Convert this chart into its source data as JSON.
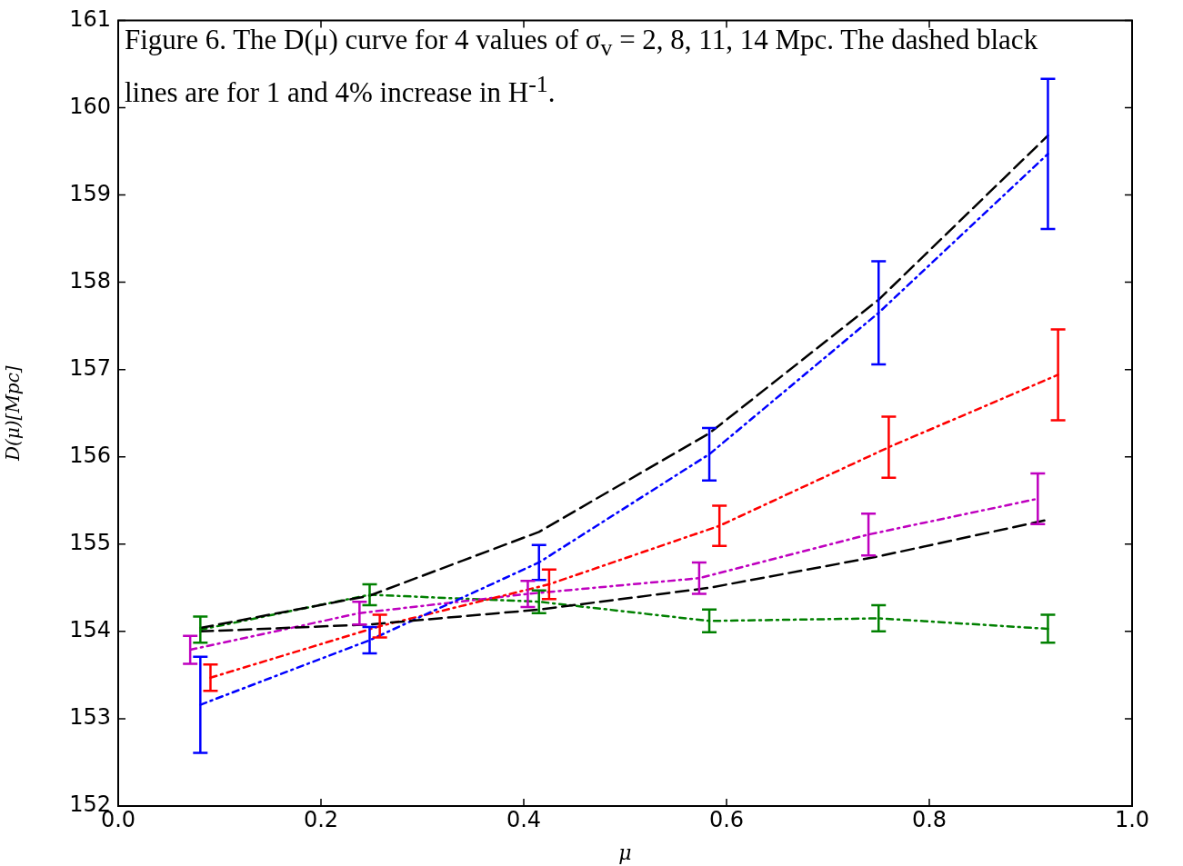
{
  "chart_data": {
    "type": "line",
    "xlabel": "μ",
    "ylabel": "D(μ)[Mpc]",
    "annotations": [
      "Figure 6. The D(μ) curve for 4 values of σ$_{v}$ = 2, 8, 11, 14 Mpc. The dashed black lines are for 1 and 4% increase in H$^{-1}$."
    ],
    "xlim": [
      0,
      1
    ],
    "xticks": [
      {
        "value": 0,
        "label": "0.0"
      },
      {
        "value": 0.2,
        "label": "0.2"
      },
      {
        "value": 0.4,
        "label": "0.4"
      },
      {
        "value": 0.6,
        "label": "0.6"
      },
      {
        "value": 0.8,
        "label": "0.8"
      },
      {
        "value": 1,
        "label": "1.0"
      }
    ],
    "ylim": [
      152,
      161
    ],
    "yticks": [
      152,
      153,
      154,
      155,
      156,
      157,
      158,
      159,
      160,
      161
    ],
    "grid": false,
    "legend": false,
    "marker": "none",
    "series": [
      {
        "color": "#000000",
        "line_style": "dashed",
        "x": [
          0.081,
          0.248,
          0.415,
          0.583,
          0.75,
          0.917
        ],
        "values": [
          154.04,
          154.41,
          155.14,
          156.27,
          157.8,
          159.68
        ]
      },
      {
        "color": "#000000",
        "line_style": "dashed",
        "x": [
          0.081,
          0.248,
          0.415,
          0.583,
          0.75,
          0.917
        ],
        "values": [
          154.0,
          154.08,
          154.25,
          154.5,
          154.86,
          155.28
        ]
      },
      {
        "color": "#0000ff",
        "line_style": "dotted",
        "x": [
          0.081,
          0.248,
          0.415,
          0.583,
          0.75,
          0.917
        ],
        "values": [
          153.16,
          153.9,
          154.79,
          156.03,
          157.65,
          159.47
        ],
        "errors": [
          0.55,
          0.15,
          0.2,
          0.3,
          0.59,
          0.86
        ]
      },
      {
        "color": "#ff0000",
        "line_style": "dotted",
        "x": [
          0.091,
          0.258,
          0.425,
          0.593,
          0.76,
          0.927
        ],
        "values": [
          153.47,
          154.06,
          154.54,
          155.21,
          156.11,
          156.94
        ],
        "errors": [
          0.15,
          0.13,
          0.17,
          0.23,
          0.35,
          0.52
        ]
      },
      {
        "color": "#bf00bf",
        "line_style": "dotted",
        "x": [
          0.071,
          0.238,
          0.404,
          0.573,
          0.74,
          0.907
        ],
        "values": [
          153.79,
          154.21,
          154.43,
          154.61,
          155.11,
          155.52
        ],
        "errors": [
          0.16,
          0.13,
          0.15,
          0.18,
          0.24,
          0.29
        ]
      },
      {
        "color": "#008000",
        "line_style": "dotted",
        "x": [
          0.081,
          0.248,
          0.415,
          0.583,
          0.75,
          0.917
        ],
        "values": [
          154.02,
          154.42,
          154.34,
          154.12,
          154.15,
          154.03
        ],
        "errors": [
          0.15,
          0.12,
          0.13,
          0.13,
          0.15,
          0.16
        ]
      }
    ]
  }
}
